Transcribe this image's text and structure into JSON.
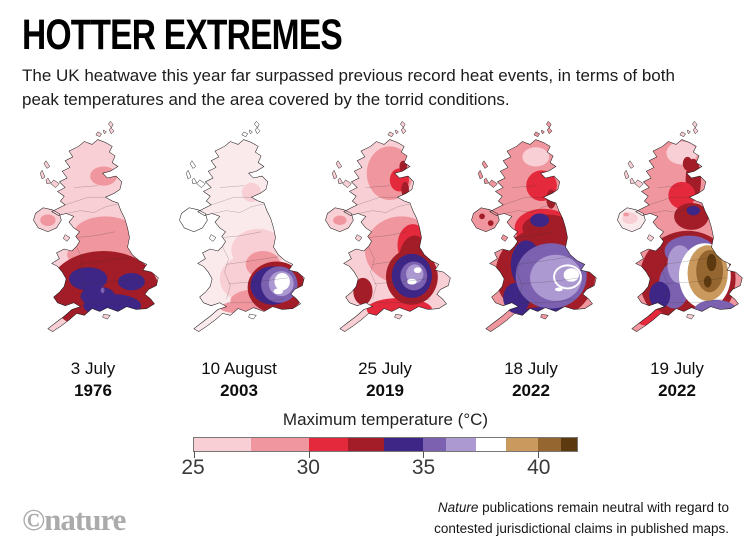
{
  "header": {
    "title": "HOTTER EXTREMES",
    "subtitle": "The UK heatwave this year far surpassed previous record heat events, in terms of both peak temperatures and the area covered by the torrid conditions."
  },
  "maps": [
    {
      "date": "3 July",
      "year": "1976"
    },
    {
      "date": "10 August",
      "year": "2003"
    },
    {
      "date": "25 July",
      "year": "2019"
    },
    {
      "date": "18 July",
      "year": "2022"
    },
    {
      "date": "19 July",
      "year": "2022"
    }
  ],
  "legend": {
    "title": "Maximum temperature (°C)",
    "unit": "°C",
    "ticks": [
      25,
      30,
      35,
      40
    ],
    "range": [
      25,
      41.7
    ],
    "palette": {
      "faint": "#fbeaec",
      "c1": "#f8cfd5",
      "c2": "#f0969e",
      "c3": "#e3293b",
      "c4": "#a21d27",
      "c5": "#3d2685",
      "c6": "#7b61af",
      "c7": "#ac99d2",
      "c8": "#ffffff",
      "c9": "#c9995e",
      "c10": "#95662f",
      "c11": "#5c390f"
    },
    "segments": [
      {
        "color": "#f8cfd5",
        "from": 25,
        "to": 27.5
      },
      {
        "color": "#f0969e",
        "from": 27.5,
        "to": 30
      },
      {
        "color": "#e3293b",
        "from": 30,
        "to": 31.7
      },
      {
        "color": "#a21d27",
        "from": 31.7,
        "to": 33.3
      },
      {
        "color": "#3d2685",
        "from": 33.3,
        "to": 35
      },
      {
        "color": "#7b61af",
        "from": 35,
        "to": 36
      },
      {
        "color": "#ac99d2",
        "from": 36,
        "to": 37.3
      },
      {
        "color": "#ffffff",
        "from": 37.3,
        "to": 38.6
      },
      {
        "color": "#c9995e",
        "from": 38.6,
        "to": 40
      },
      {
        "color": "#95662f",
        "from": 40,
        "to": 41
      },
      {
        "color": "#5c390f",
        "from": 41,
        "to": 41.7
      }
    ]
  },
  "footer": {
    "logo": "©nature",
    "note_italic": "Nature",
    "note_line1": " publications remain neutral with regard to",
    "note_line2": "contested jurisdictional claims in published maps."
  },
  "chart_data": {
    "type": "heatmap",
    "title": "HOTTER EXTREMES",
    "subtitle": "The UK heatwave this year far surpassed previous record heat events, in terms of both peak temperatures and the area covered by the torrid conditions.",
    "maps": [
      {
        "label": "3 July 1976",
        "peak_band_c": "32–34",
        "pattern": "red 30–33°C across most of England and Wales with dark-red cores in the Midlands and the south; Scotland and Northern Ireland pale pink 25–28°C"
      },
      {
        "label": "10 August 2003",
        "peak_band_c": "36–37",
        "pattern": "purple 33–37°C core over the southeast and East Anglia ringed by red; rest of Britain near-white below 27°C"
      },
      {
        "label": "25 July 2019",
        "peak_band_c": "36–38",
        "pattern": "purple core with pale centre over the East Midlands and East Anglia, red band down eastern England, pink Scotland"
      },
      {
        "label": "18 July 2022",
        "peak_band_c": "37–38",
        "pattern": "large purple area over most of central and eastern England with white 37–39°C patch in the east; dark red over Wales and the north; pink Scotland"
      },
      {
        "label": "19 July 2022",
        "peak_band_c": "40+",
        "pattern": "brown 40°C+ core over eastern England surrounded by white and purple bands; red along Scotland's east coast and Wales"
      }
    ],
    "colorbar": {
      "label": "Maximum temperature (°C)",
      "ticks": [
        25,
        30,
        35,
        40
      ],
      "segments": [
        {
          "color": "#f8cfd5",
          "from": 25,
          "to": 27.5
        },
        {
          "color": "#f0969e",
          "from": 27.5,
          "to": 30
        },
        {
          "color": "#e3293b",
          "from": 30,
          "to": 31.7
        },
        {
          "color": "#a21d27",
          "from": 31.7,
          "to": 33.3
        },
        {
          "color": "#3d2685",
          "from": 33.3,
          "to": 35
        },
        {
          "color": "#7b61af",
          "from": 35,
          "to": 36
        },
        {
          "color": "#ac99d2",
          "from": 36,
          "to": 37.3
        },
        {
          "color": "#ffffff",
          "from": 37.3,
          "to": 38.6
        },
        {
          "color": "#c9995e",
          "from": 38.6,
          "to": 40
        },
        {
          "color": "#95662f",
          "from": 40,
          "to": 41
        },
        {
          "color": "#5c390f",
          "from": 41,
          "to": 41.7
        }
      ]
    }
  }
}
